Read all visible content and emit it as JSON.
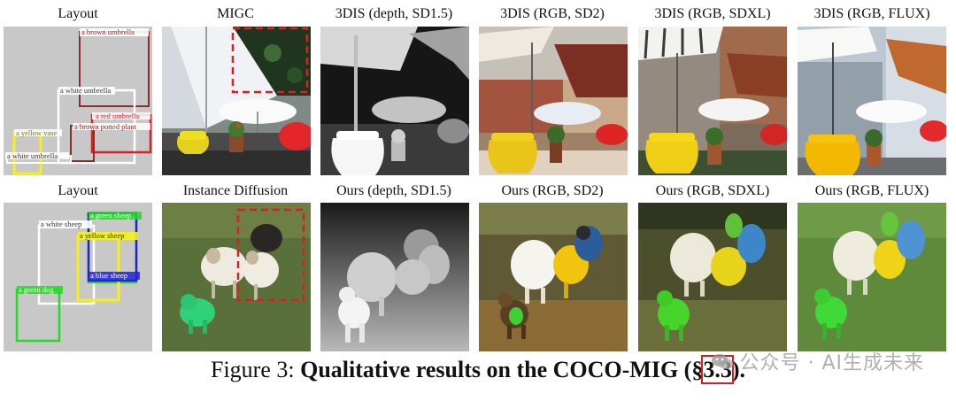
{
  "columns_row1": [
    "Layout",
    "MIGC",
    "3DIS (depth, SD1.5)",
    "3DIS (RGB, SD2)",
    "3DIS (RGB, SDXL)",
    "3DIS (RGB, FLUX)"
  ],
  "columns_row2": [
    "Layout",
    "Instance Diffusion",
    "Ours (depth, SD1.5)",
    "Ours (RGB, SD2)",
    "Ours (RGB, SDXL)",
    "Ours (RGB, FLUX)"
  ],
  "layout1_boxes": [
    {
      "label": "a brown umbrella",
      "color": "#8b2b2b"
    },
    {
      "label": "a white umbrella",
      "color": "#ffffff"
    },
    {
      "label": "a red umbrella",
      "color": "#e02020"
    },
    {
      "label": "a brown potted plant",
      "color": "#8b2b2b"
    },
    {
      "label": "a yellow vase",
      "color": "#f2f21a"
    },
    {
      "label": "a white umbrella",
      "color": "#ffffff"
    }
  ],
  "layout2_boxes": [
    {
      "label": "a white sheep",
      "color": "#ffffff"
    },
    {
      "label": "a green sheep",
      "color": "#22dd22"
    },
    {
      "label": "a yellow sheep",
      "color": "#f2f21a"
    },
    {
      "label": "a blue sheep",
      "color": "#2222dd"
    },
    {
      "label": "a green dog",
      "color": "#22dd22"
    }
  ],
  "caption": {
    "prefix": "Figure 3: ",
    "bold_text": "Qualitative results on the COCO-MIG (§",
    "ref": "3.3",
    "bold_end": ").",
    "ref_highlight_color": "#d21f1f"
  },
  "watermark": {
    "text": "公众号 · AI生成未来",
    "icon": "wechat-icon"
  },
  "colors": {
    "layout_bg": "#c8c8c8",
    "highlight_dash": "#d82020"
  }
}
